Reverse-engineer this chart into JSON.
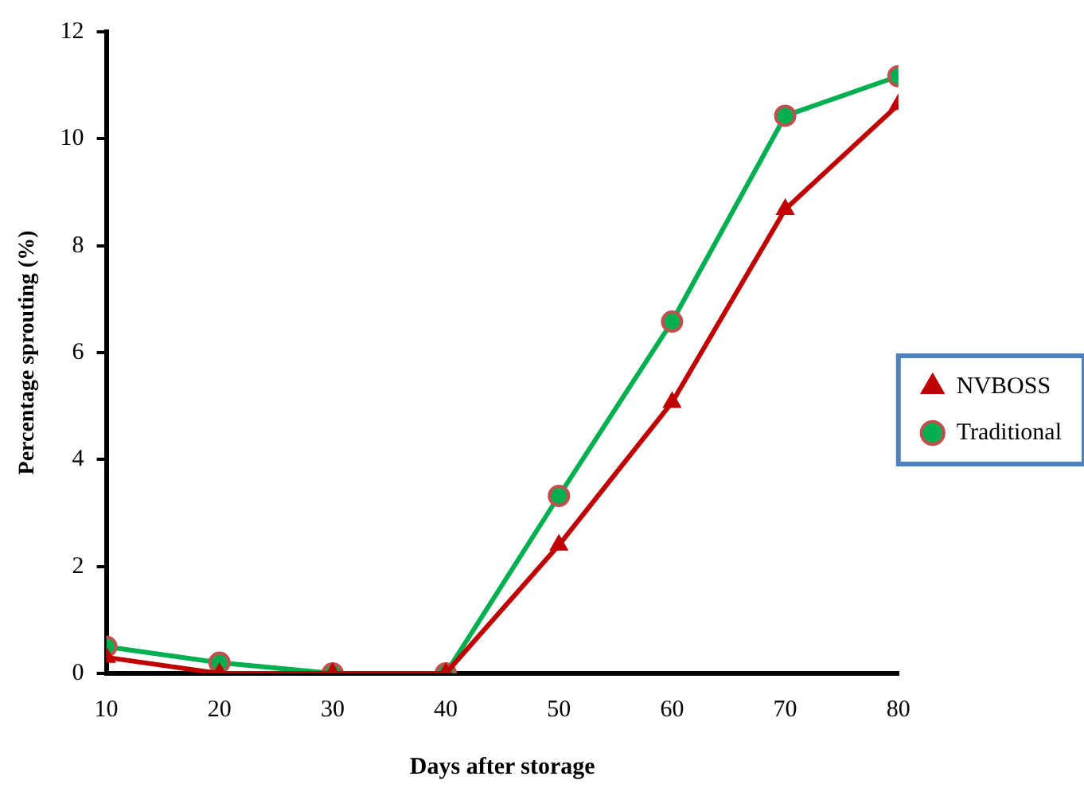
{
  "chart_data": {
    "type": "line",
    "xlabel": "Days after storage",
    "ylabel": "Percentage sprouting (%)",
    "x": [
      10,
      20,
      30,
      40,
      50,
      60,
      70,
      80
    ],
    "series": [
      {
        "name": "NVBOSS",
        "color": "#c00000",
        "marker": "triangle",
        "values": [
          0.3,
          0,
          0,
          0,
          2.4,
          5.07,
          8.68,
          10.64
        ]
      },
      {
        "name": "Traditional",
        "color": "#00b050",
        "marker": "circle",
        "values": [
          0.5,
          0.2,
          0,
          0,
          3.32,
          6.58,
          10.43,
          11.17
        ]
      }
    ],
    "xlim": [
      10,
      80
    ],
    "xticks": [
      10,
      20,
      30,
      40,
      50,
      60,
      70,
      80
    ],
    "ylim": [
      0,
      12
    ],
    "yticks": [
      0,
      2,
      4,
      6,
      8,
      10,
      12
    ],
    "grid": false,
    "legend": "right",
    "line_style": "solid"
  }
}
